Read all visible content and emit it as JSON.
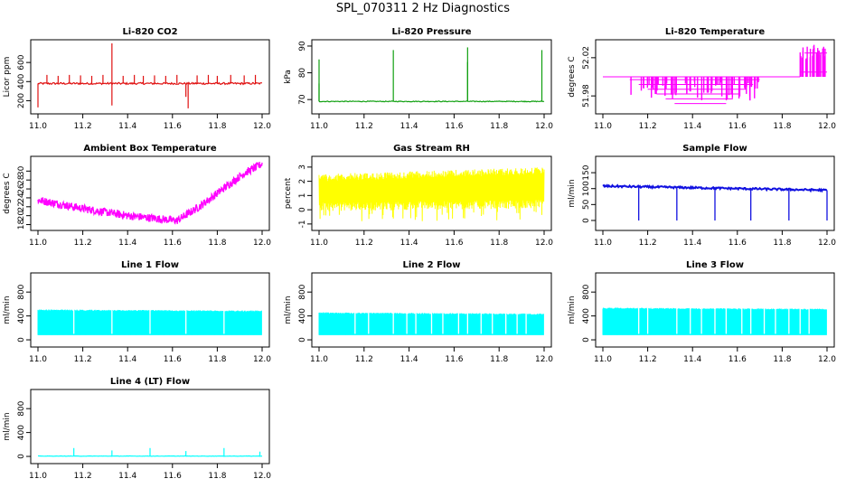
{
  "figure_title": "SPL_070311  2 Hz Diagnostics",
  "chart_data": [
    {
      "type": "line",
      "title": "Li-820 CO2",
      "ylabel": "Licor ppm",
      "color": "#e01010",
      "xlim": [
        11.0,
        12.0
      ],
      "ylim": [
        100,
        800
      ],
      "xticks": [
        11.0,
        11.2,
        11.4,
        11.6,
        11.8,
        12.0
      ],
      "xtick_labels": [
        "11.0",
        "11.2",
        "11.4",
        "11.6",
        "11.8",
        "12.0"
      ],
      "yticks": [
        200,
        400,
        600
      ],
      "ytick_labels": [
        "200",
        "400",
        "600"
      ],
      "style": "base_spikes",
      "base": 380,
      "noise": 10,
      "spikes": [
        {
          "x": 11.04,
          "v": 470
        },
        {
          "x": 11.09,
          "v": 460
        },
        {
          "x": 11.14,
          "v": 470
        },
        {
          "x": 11.19,
          "v": 465
        },
        {
          "x": 11.24,
          "v": 460
        },
        {
          "x": 11.29,
          "v": 470
        },
        {
          "x": 11.33,
          "v": 800
        },
        {
          "x": 11.33,
          "v": 150
        },
        {
          "x": 11.38,
          "v": 460
        },
        {
          "x": 11.43,
          "v": 470
        },
        {
          "x": 11.47,
          "v": 460
        },
        {
          "x": 11.52,
          "v": 465
        },
        {
          "x": 11.57,
          "v": 460
        },
        {
          "x": 11.62,
          "v": 470
        },
        {
          "x": 11.66,
          "v": 240
        },
        {
          "x": 11.67,
          "v": 120
        },
        {
          "x": 11.71,
          "v": 465
        },
        {
          "x": 11.76,
          "v": 470
        },
        {
          "x": 11.8,
          "v": 460
        },
        {
          "x": 11.86,
          "v": 470
        },
        {
          "x": 11.92,
          "v": 465
        },
        {
          "x": 11.97,
          "v": 470
        },
        {
          "x": 11.0,
          "v": 130
        }
      ]
    },
    {
      "type": "line",
      "title": "Li-820 Pressure",
      "ylabel": "kPa",
      "color": "#10a010",
      "xlim": [
        11.0,
        12.0
      ],
      "ylim": [
        66,
        91
      ],
      "xticks": [
        11.0,
        11.2,
        11.4,
        11.6,
        11.8,
        12.0
      ],
      "xtick_labels": [
        "11.0",
        "11.2",
        "11.4",
        "11.6",
        "11.8",
        "12.0"
      ],
      "yticks": [
        70,
        80,
        90
      ],
      "ytick_labels": [
        "70",
        "80",
        "90"
      ],
      "style": "base_spikes",
      "base": 69.3,
      "noise": 0.15,
      "spikes": [
        {
          "x": 11.0,
          "v": 85
        },
        {
          "x": 11.0,
          "v": 76
        },
        {
          "x": 11.33,
          "v": 88.5
        },
        {
          "x": 11.66,
          "v": 89.5
        },
        {
          "x": 11.66,
          "v": 84
        },
        {
          "x": 11.99,
          "v": 88.5
        }
      ]
    },
    {
      "type": "line",
      "title": "Li-820 Temperature",
      "ylabel": "degrees C",
      "color": "#ff00ff",
      "xlim": [
        11.0,
        12.0
      ],
      "ylim": [
        51.965,
        52.035
      ],
      "xticks": [
        11.0,
        11.2,
        11.4,
        11.6,
        11.8,
        12.0
      ],
      "xtick_labels": [
        "11.0",
        "11.2",
        "11.4",
        "11.6",
        "11.8",
        "12.0"
      ],
      "yticks": [
        51.98,
        52.02
      ],
      "ytick_labels": [
        "51.98",
        "52.02"
      ],
      "style": "temp_steps",
      "base": 52.0
    },
    {
      "type": "line",
      "title": "Ambient Box Temperature",
      "ylabel": "degrees C",
      "color": "#ff00ff",
      "xlim": [
        11.0,
        12.0
      ],
      "ylim": [
        17.5,
        32.5
      ],
      "xticks": [
        11.0,
        11.2,
        11.4,
        11.6,
        11.8,
        12.0
      ],
      "xtick_labels": [
        "11.0",
        "11.2",
        "11.4",
        "11.6",
        "11.8",
        "12.0"
      ],
      "yticks": [
        18,
        20,
        22,
        24,
        26,
        28,
        30
      ],
      "ytick_labels": [
        "18",
        "20",
        "22",
        "24",
        "26",
        "28",
        "30"
      ],
      "style": "band_curve",
      "band": 0.9,
      "curve": [
        [
          11.0,
          23.5
        ],
        [
          11.2,
          21.6
        ],
        [
          11.4,
          20.0
        ],
        [
          11.62,
          18.9
        ],
        [
          11.72,
          22.0
        ],
        [
          11.82,
          25.8
        ],
        [
          11.92,
          29.5
        ],
        [
          12.0,
          31.6
        ]
      ]
    },
    {
      "type": "line",
      "title": "Gas Stream RH",
      "ylabel": "percent",
      "color": "#ffff00",
      "xlim": [
        11.0,
        12.0
      ],
      "ylim": [
        -1.2,
        3.5
      ],
      "xticks": [
        11.0,
        11.2,
        11.4,
        11.6,
        11.8,
        12.0
      ],
      "xtick_labels": [
        "11.0",
        "11.2",
        "11.4",
        "11.6",
        "11.8",
        "12.0"
      ],
      "yticks": [
        -1,
        0,
        1,
        2,
        3
      ],
      "ytick_labels": [
        "-1",
        "0",
        "1",
        "2",
        "3"
      ],
      "style": "noise_band",
      "low": [
        [
          11.0,
          -0.1
        ],
        [
          12.0,
          0.1
        ]
      ],
      "high": [
        [
          11.0,
          2.5
        ],
        [
          12.0,
          3.0
        ]
      ],
      "jitter": 0.5
    },
    {
      "type": "line",
      "title": "Sample Flow",
      "ylabel": "ml/min",
      "color": "#1010e0",
      "xlim": [
        11.0,
        12.0
      ],
      "ylim": [
        -20,
        190
      ],
      "xticks": [
        11.0,
        11.2,
        11.4,
        11.6,
        11.8,
        12.0
      ],
      "xtick_labels": [
        "11.0",
        "11.2",
        "11.4",
        "11.6",
        "11.8",
        "12.0"
      ],
      "yticks": [
        0,
        50,
        100,
        150
      ],
      "ytick_labels": [
        "0",
        "50",
        "100",
        "150"
      ],
      "style": "base_dips",
      "base": [
        [
          11.0,
          108
        ],
        [
          12.0,
          95
        ]
      ],
      "noise": 3,
      "dips": [
        11.16,
        11.33,
        11.5,
        11.66,
        11.83,
        12.0
      ],
      "dip_low": 0
    },
    {
      "type": "line",
      "title": "Line 1 Flow",
      "ylabel": "ml/min",
      "color": "#00ffff",
      "xlim": [
        11.0,
        12.0
      ],
      "ylim": [
        -60,
        1060
      ],
      "xticks": [
        11.0,
        11.2,
        11.4,
        11.6,
        11.8,
        12.0
      ],
      "xtick_labels": [
        "11.0",
        "11.2",
        "11.4",
        "11.6",
        "11.8",
        "12.0"
      ],
      "yticks": [
        0,
        400,
        800
      ],
      "ytick_labels": [
        "0",
        "400",
        "800"
      ],
      "style": "flow_block",
      "top": [
        [
          11.0,
          510
        ],
        [
          12.0,
          490
        ]
      ],
      "bottom": 80,
      "gaps": [
        11.16,
        11.33,
        11.5,
        11.66,
        11.83
      ]
    },
    {
      "type": "line",
      "title": "Line 2 Flow",
      "ylabel": "ml/min",
      "color": "#00ffff",
      "xlim": [
        11.0,
        12.0
      ],
      "ylim": [
        -60,
        1060
      ],
      "xticks": [
        11.0,
        11.2,
        11.4,
        11.6,
        11.8,
        12.0
      ],
      "xtick_labels": [
        "11.0",
        "11.2",
        "11.4",
        "11.6",
        "11.8",
        "12.0"
      ],
      "yticks": [
        0,
        400,
        800
      ],
      "ytick_labels": [
        "0",
        "400",
        "800"
      ],
      "style": "flow_block",
      "top": [
        [
          11.0,
          460
        ],
        [
          12.0,
          440
        ]
      ],
      "bottom": 80,
      "gaps": [
        11.16,
        11.22,
        11.33,
        11.39,
        11.43,
        11.5,
        11.55,
        11.62,
        11.66,
        11.72,
        11.77,
        11.83,
        11.88,
        11.92
      ]
    },
    {
      "type": "line",
      "title": "Line 3 Flow",
      "ylabel": "ml/min",
      "color": "#00ffff",
      "xlim": [
        11.0,
        12.0
      ],
      "ylim": [
        -60,
        1060
      ],
      "xticks": [
        11.0,
        11.2,
        11.4,
        11.6,
        11.8,
        12.0
      ],
      "xtick_labels": [
        "11.0",
        "11.2",
        "11.4",
        "11.6",
        "11.8",
        "12.0"
      ],
      "yticks": [
        0,
        400,
        800
      ],
      "ytick_labels": [
        "0",
        "400",
        "800"
      ],
      "style": "flow_block",
      "top": [
        [
          11.0,
          540
        ],
        [
          12.0,
          520
        ]
      ],
      "bottom": 80,
      "gaps": [
        11.16,
        11.2,
        11.33,
        11.39,
        11.44,
        11.5,
        11.55,
        11.62,
        11.66,
        11.72,
        11.77,
        11.83,
        11.88,
        11.92
      ]
    },
    {
      "type": "line",
      "title": "Line 4 (LT) Flow",
      "ylabel": "ml/min",
      "color": "#00ffff",
      "xlim": [
        11.0,
        12.0
      ],
      "ylim": [
        -60,
        1060
      ],
      "xticks": [
        11.0,
        11.2,
        11.4,
        11.6,
        11.8,
        12.0
      ],
      "xtick_labels": [
        "11.0",
        "11.2",
        "11.4",
        "11.6",
        "11.8",
        "12.0"
      ],
      "yticks": [
        0,
        400,
        800
      ],
      "ytick_labels": [
        "0",
        "400",
        "800"
      ],
      "style": "base_spikes",
      "base": 5,
      "noise": 3,
      "spikes": [
        {
          "x": 11.16,
          "v": 140
        },
        {
          "x": 11.33,
          "v": 100
        },
        {
          "x": 11.5,
          "v": 140
        },
        {
          "x": 11.66,
          "v": 90
        },
        {
          "x": 11.83,
          "v": 140
        },
        {
          "x": 11.99,
          "v": 80
        }
      ]
    }
  ]
}
